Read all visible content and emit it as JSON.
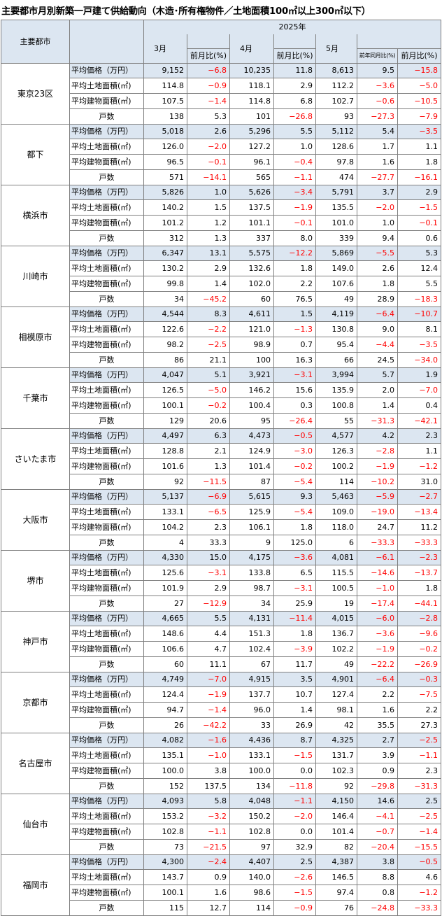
{
  "title": "主要都市月別新築一戸建て供給動向（木造･所有権物件／土地面積100㎡以上300㎡以下）",
  "header": {
    "city_col": "主要都市",
    "year": "2025年",
    "months": [
      "3月",
      "4月",
      "5月"
    ],
    "mom": "前月比(%)",
    "yoy": "前年同月比(%)"
  },
  "metric_labels": [
    "平均価格（万円）",
    "平均土地面積(㎡)",
    "平均建物面積(㎡)",
    "戸数"
  ],
  "cities": [
    {
      "name": "東京23区",
      "rows": [
        [
          "9,152",
          "-6.8",
          "10,235",
          "11.8",
          "8,613",
          "9.5",
          "-15.8"
        ],
        [
          "114.8",
          "-0.9",
          "118.1",
          "2.9",
          "112.2",
          "-3.6",
          "-5.0"
        ],
        [
          "107.5",
          "-1.4",
          "114.8",
          "6.8",
          "102.7",
          "-0.6",
          "-10.5"
        ],
        [
          "138",
          "5.3",
          "101",
          "-26.8",
          "93",
          "-27.3",
          "-7.9"
        ]
      ]
    },
    {
      "name": "都下",
      "rows": [
        [
          "5,018",
          "2.6",
          "5,296",
          "5.5",
          "5,112",
          "5.4",
          "-3.5"
        ],
        [
          "126.0",
          "-2.0",
          "127.2",
          "1.0",
          "128.6",
          "1.7",
          "1.1"
        ],
        [
          "96.5",
          "-0.1",
          "96.1",
          "-0.4",
          "97.8",
          "1.6",
          "1.8"
        ],
        [
          "571",
          "-14.1",
          "565",
          "-1.1",
          "474",
          "-27.7",
          "-16.1"
        ]
      ]
    },
    {
      "name": "横浜市",
      "rows": [
        [
          "5,826",
          "1.0",
          "5,626",
          "-3.4",
          "5,791",
          "3.7",
          "2.9"
        ],
        [
          "140.2",
          "1.5",
          "137.5",
          "-1.9",
          "135.5",
          "-2.0",
          "-1.5"
        ],
        [
          "101.2",
          "1.2",
          "101.1",
          "-0.1",
          "101.0",
          "1.0",
          "-0.1"
        ],
        [
          "312",
          "1.3",
          "337",
          "8.0",
          "339",
          "9.4",
          "0.6"
        ]
      ]
    },
    {
      "name": "川崎市",
      "rows": [
        [
          "6,347",
          "13.1",
          "5,575",
          "-12.2",
          "5,869",
          "-5.5",
          "5.3"
        ],
        [
          "130.2",
          "2.9",
          "132.6",
          "1.8",
          "149.0",
          "2.6",
          "12.4"
        ],
        [
          "99.8",
          "1.4",
          "102.0",
          "2.2",
          "107.6",
          "1.8",
          "5.5"
        ],
        [
          "34",
          "-45.2",
          "60",
          "76.5",
          "49",
          "28.9",
          "-18.3"
        ]
      ]
    },
    {
      "name": "相模原市",
      "rows": [
        [
          "4,544",
          "8.3",
          "4,611",
          "1.5",
          "4,119",
          "-6.4",
          "-10.7"
        ],
        [
          "122.6",
          "-2.2",
          "121.0",
          "-1.3",
          "130.8",
          "9.0",
          "8.1"
        ],
        [
          "98.2",
          "-2.5",
          "98.9",
          "0.7",
          "95.4",
          "-4.4",
          "-3.5"
        ],
        [
          "86",
          "21.1",
          "100",
          "16.3",
          "66",
          "24.5",
          "-34.0"
        ]
      ]
    },
    {
      "name": "千葉市",
      "rows": [
        [
          "4,047",
          "5.1",
          "3,921",
          "-3.1",
          "3,994",
          "5.7",
          "1.9"
        ],
        [
          "126.5",
          "-5.0",
          "146.2",
          "15.6",
          "135.9",
          "2.0",
          "-7.0"
        ],
        [
          "100.1",
          "-0.2",
          "100.4",
          "0.3",
          "100.8",
          "1.4",
          "0.4"
        ],
        [
          "129",
          "20.6",
          "95",
          "-26.4",
          "55",
          "-31.3",
          "-42.1"
        ]
      ]
    },
    {
      "name": "さいたま市",
      "rows": [
        [
          "4,497",
          "6.3",
          "4,473",
          "-0.5",
          "4,577",
          "4.2",
          "2.3"
        ],
        [
          "128.8",
          "2.1",
          "124.9",
          "-3.0",
          "126.3",
          "-2.8",
          "1.1"
        ],
        [
          "101.6",
          "1.3",
          "101.4",
          "-0.2",
          "100.2",
          "-1.9",
          "-1.2"
        ],
        [
          "92",
          "-11.5",
          "87",
          "-5.4",
          "114",
          "-10.2",
          "31.0"
        ]
      ]
    },
    {
      "name": "大阪市",
      "rows": [
        [
          "5,137",
          "-6.9",
          "5,615",
          "9.3",
          "5,463",
          "-5.9",
          "-2.7"
        ],
        [
          "133.1",
          "-6.5",
          "125.9",
          "-5.4",
          "109.0",
          "-19.0",
          "-13.4"
        ],
        [
          "104.2",
          "2.3",
          "106.1",
          "1.8",
          "118.0",
          "24.7",
          "11.2"
        ],
        [
          "4",
          "33.3",
          "9",
          "125.0",
          "6",
          "-33.3",
          "-33.3"
        ]
      ]
    },
    {
      "name": "堺市",
      "rows": [
        [
          "4,330",
          "15.0",
          "4,175",
          "-3.6",
          "4,081",
          "-6.1",
          "-2.3"
        ],
        [
          "125.6",
          "-3.1",
          "133.8",
          "6.5",
          "115.5",
          "-14.6",
          "-13.7"
        ],
        [
          "101.9",
          "2.9",
          "98.7",
          "-3.1",
          "100.5",
          "-1.0",
          "1.8"
        ],
        [
          "27",
          "-12.9",
          "34",
          "25.9",
          "19",
          "-17.4",
          "-44.1"
        ]
      ]
    },
    {
      "name": "神戸市",
      "rows": [
        [
          "4,665",
          "5.5",
          "4,131",
          "-11.4",
          "4,015",
          "-6.0",
          "-2.8"
        ],
        [
          "148.6",
          "4.4",
          "151.3",
          "1.8",
          "136.7",
          "-3.6",
          "-9.6"
        ],
        [
          "106.6",
          "4.7",
          "102.4",
          "-3.9",
          "102.2",
          "-1.9",
          "-0.2"
        ],
        [
          "60",
          "11.1",
          "67",
          "11.7",
          "49",
          "-22.2",
          "-26.9"
        ]
      ]
    },
    {
      "name": "京都市",
      "rows": [
        [
          "4,749",
          "-7.0",
          "4,915",
          "3.5",
          "4,901",
          "-6.4",
          "-0.3"
        ],
        [
          "124.4",
          "-1.9",
          "137.7",
          "10.7",
          "127.4",
          "2.2",
          "-7.5"
        ],
        [
          "94.7",
          "-1.4",
          "96.0",
          "1.4",
          "98.1",
          "1.6",
          "2.2"
        ],
        [
          "26",
          "-42.2",
          "33",
          "26.9",
          "42",
          "35.5",
          "27.3"
        ]
      ]
    },
    {
      "name": "名古屋市",
      "rows": [
        [
          "4,082",
          "-1.6",
          "4,436",
          "8.7",
          "4,325",
          "2.7",
          "-2.5"
        ],
        [
          "135.1",
          "-1.0",
          "133.1",
          "-1.5",
          "131.7",
          "3.9",
          "-1.1"
        ],
        [
          "100.0",
          "3.8",
          "100.0",
          "0.0",
          "102.3",
          "0.9",
          "2.3"
        ],
        [
          "152",
          "137.5",
          "134",
          "-11.8",
          "92",
          "-29.8",
          "-31.3"
        ]
      ]
    },
    {
      "name": "仙台市",
      "rows": [
        [
          "4,093",
          "5.8",
          "4,048",
          "-1.1",
          "4,150",
          "14.6",
          "2.5"
        ],
        [
          "153.2",
          "-3.2",
          "150.2",
          "-2.0",
          "146.4",
          "-4.1",
          "-2.5"
        ],
        [
          "102.8",
          "-1.1",
          "102.8",
          "0.0",
          "101.4",
          "-0.7",
          "-1.4"
        ],
        [
          "73",
          "-21.5",
          "97",
          "32.9",
          "82",
          "-20.4",
          "-15.5"
        ]
      ]
    },
    {
      "name": "福岡市",
      "rows": [
        [
          "4,300",
          "-2.4",
          "4,407",
          "2.5",
          "4,387",
          "3.8",
          "-0.5"
        ],
        [
          "143.7",
          "0.9",
          "140.0",
          "-2.6",
          "146.5",
          "8.8",
          "4.6"
        ],
        [
          "100.1",
          "1.6",
          "98.6",
          "-1.5",
          "97.4",
          "0.8",
          "-1.2"
        ],
        [
          "115",
          "12.7",
          "114",
          "-0.9",
          "76",
          "-24.8",
          "-33.3"
        ]
      ]
    }
  ]
}
